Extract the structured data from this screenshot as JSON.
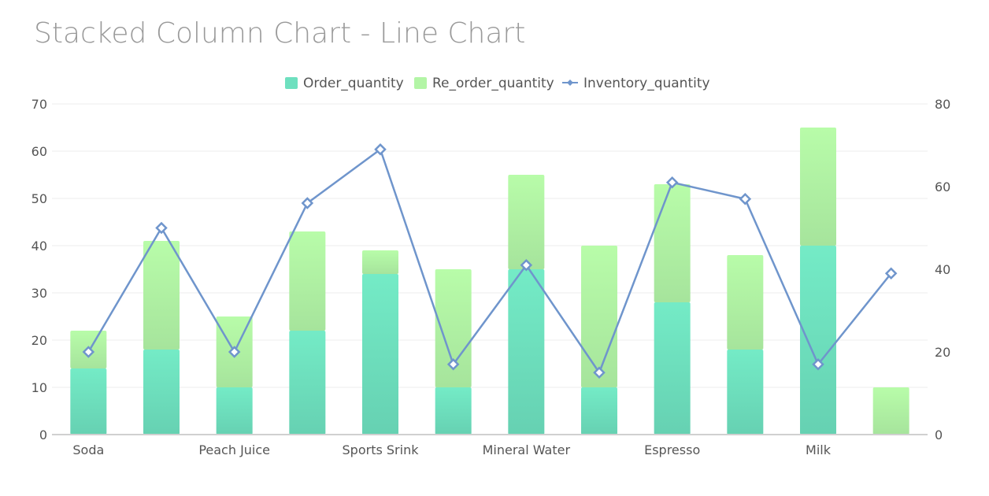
{
  "chart_data": {
    "type": "bar",
    "title": "Stacked Column Chart - Line Chart",
    "categories": [
      "Soda",
      "",
      "Peach Juice",
      "",
      "Sports Srink",
      "",
      "Mineral Water",
      "",
      "Espresso",
      "",
      "Milk",
      ""
    ],
    "series": [
      {
        "name": "Order_quantity",
        "type": "bar",
        "stack": "total",
        "axis": "left",
        "color": "#6ee0bf",
        "values": [
          14,
          18,
          10,
          22,
          34,
          10,
          35,
          10,
          28,
          18,
          40,
          0
        ]
      },
      {
        "name": "Re_order_quantity",
        "type": "bar",
        "stack": "total",
        "axis": "left",
        "color": "#b3f5a6",
        "values": [
          8,
          23,
          15,
          21,
          5,
          25,
          20,
          30,
          25,
          20,
          25,
          10
        ]
      },
      {
        "name": "Inventory_quantity",
        "type": "line",
        "axis": "right",
        "color": "#6f95cc",
        "values": [
          20,
          50,
          20,
          56,
          69,
          17,
          41,
          15,
          61,
          57,
          17,
          39
        ]
      }
    ],
    "y_left": {
      "min": 0,
      "max": 70,
      "ticks": [
        "0",
        "10",
        "20",
        "30",
        "40",
        "50",
        "60",
        "70"
      ]
    },
    "y_right": {
      "min": 0,
      "max": 80,
      "ticks": [
        "0",
        "20",
        "40",
        "60",
        "80"
      ]
    },
    "grid": true,
    "legend": "top-center"
  }
}
